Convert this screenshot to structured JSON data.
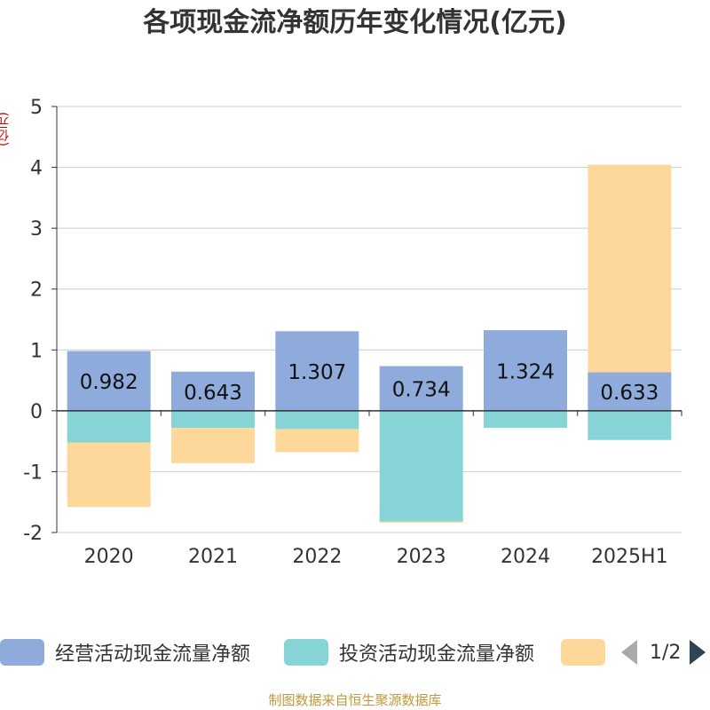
{
  "chart_data": {
    "type": "bar",
    "stacked": true,
    "title": "各项现金流净额历年变化情况(亿元)",
    "ylabel": "(亿元)",
    "ylim": [
      -2,
      5
    ],
    "yticks": [
      -2,
      -1,
      0,
      1,
      2,
      3,
      4,
      5
    ],
    "grid": true,
    "legend_position": "bottom",
    "categories": [
      "2020",
      "2021",
      "2022",
      "2023",
      "2024",
      "2025H1"
    ],
    "series": [
      {
        "name": "经营活动现金流量净额",
        "color": "#8eabdb",
        "values": [
          0.982,
          0.643,
          1.307,
          0.734,
          1.324,
          0.633
        ],
        "show_labels": true
      },
      {
        "name": "投资活动现金流量净额",
        "color": "#86d4d6",
        "values": [
          -0.52,
          -0.28,
          -0.3,
          -1.82,
          -0.28,
          -0.48
        ]
      },
      {
        "name": "",
        "color": "#fdd89a",
        "values": [
          -1.06,
          -0.58,
          -0.38,
          -0.02,
          0.0,
          3.41
        ]
      }
    ]
  },
  "legend": {
    "page_indicator": "1/2"
  },
  "source": "制图数据来自恒生聚源数据库"
}
